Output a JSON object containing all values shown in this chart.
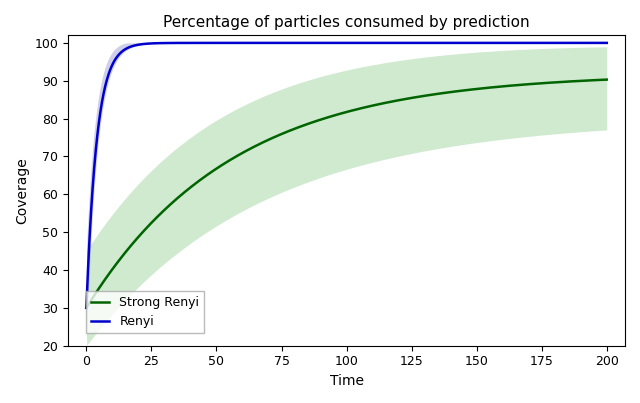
{
  "title": "Percentage of particles consumed by prediction",
  "xlabel": "Time",
  "ylabel": "Coverage",
  "xlim": [
    -7,
    207
  ],
  "ylim": [
    20,
    102
  ],
  "x_ticks": [
    0,
    25,
    50,
    75,
    100,
    125,
    150,
    175,
    200
  ],
  "y_ticks": [
    20,
    30,
    40,
    50,
    60,
    70,
    80,
    90,
    100
  ],
  "renyi_color": "#0000cc",
  "strong_renyi_color": "#006400",
  "renyi_fill_color": "#8888cc",
  "strong_renyi_fill_color": "#88cc88",
  "renyi_alpha": 0.4,
  "strong_renyi_alpha": 0.4,
  "legend_labels": [
    "Renyi",
    "Strong Renyi"
  ],
  "n_points": 2000
}
